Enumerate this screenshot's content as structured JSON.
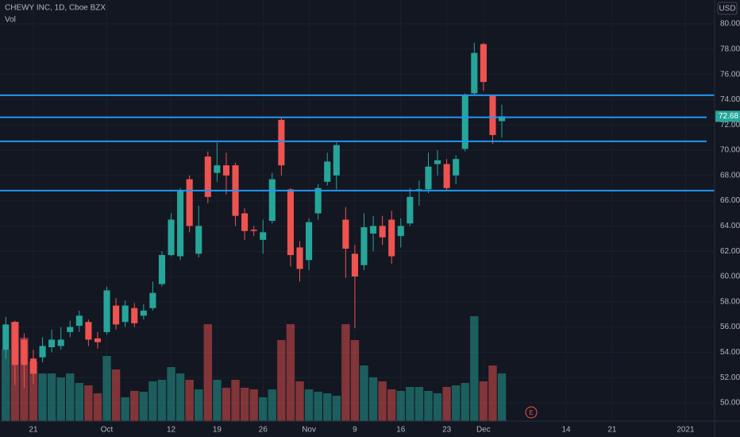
{
  "chart_data": {
    "type": "candlestick",
    "title": "CHEWY INC, 1D, Cboe BZX",
    "volume_label": "Vol",
    "currency": "USD",
    "earnings_marker": "E",
    "up_color": "#26a69a",
    "down_color": "#ef5350",
    "level_color": "#2196f3",
    "open": [
      54.2,
      56.4,
      55.0,
      53.5,
      53.6,
      54.4,
      54.5,
      55.6,
      56.1,
      56.4,
      55.1,
      55.6,
      57.7,
      56.4,
      57.5,
      56.9,
      57.5,
      59.4,
      61.7,
      61.6,
      67.7,
      61.8,
      69.5,
      68.2,
      68.8,
      68.8,
      65.0,
      63.7,
      62.9,
      64.4,
      72.4,
      66.9,
      62.3,
      61.3,
      65.0,
      67.5,
      68.0,
      64.5,
      61.8,
      60.9,
      63.4,
      64.0,
      64.5,
      63.2,
      64.2,
      66.8,
      66.9,
      68.9,
      68.9,
      68.0,
      70.1,
      74.5,
      78.4,
      74.3,
      72.3
    ],
    "high": [
      56.8,
      56.5,
      55.5,
      54.2,
      55.2,
      55.8,
      56.0,
      56.5,
      57.3,
      56.6,
      55.6,
      59.2,
      58.3,
      58.1,
      57.9,
      57.8,
      59.6,
      62.0,
      65.0,
      67.0,
      68.0,
      65.6,
      69.9,
      70.6,
      69.8,
      69.0,
      65.4,
      64.0,
      64.5,
      68.2,
      72.6,
      67.0,
      62.8,
      64.6,
      67.3,
      69.8,
      70.6,
      65.5,
      62.5,
      65.0,
      64.8,
      64.8,
      65.2,
      64.6,
      67.0,
      67.6,
      69.8,
      70.0,
      69.3,
      69.6,
      74.5,
      78.5,
      78.5,
      74.4,
      73.6
    ],
    "low": [
      53.5,
      51.4,
      51.2,
      51.5,
      53.2,
      54.0,
      54.2,
      55.2,
      55.6,
      54.5,
      54.3,
      55.4,
      55.8,
      56.0,
      56.0,
      56.6,
      57.3,
      59.2,
      61.6,
      61.3,
      63.5,
      61.5,
      65.8,
      67.5,
      66.5,
      64.0,
      62.9,
      63.2,
      61.8,
      64.2,
      68.0,
      60.8,
      59.6,
      60.5,
      64.5,
      67.2,
      66.9,
      59.9,
      55.9,
      60.5,
      62.0,
      62.5,
      61.0,
      62.3,
      64.0,
      65.6,
      66.6,
      68.0,
      66.8,
      67.3,
      69.9,
      74.4,
      74.7,
      70.5,
      71.0
    ],
    "close": [
      56.2,
      53.0,
      53.0,
      52.3,
      54.5,
      55.0,
      55.0,
      56.0,
      56.9,
      55.0,
      54.8,
      58.9,
      56.2,
      57.7,
      56.3,
      57.3,
      58.7,
      61.7,
      64.5,
      66.8,
      64.0,
      64.0,
      66.3,
      68.8,
      68.0,
      64.8,
      63.6,
      63.6,
      63.5,
      67.7,
      68.8,
      61.7,
      60.6,
      64.3,
      67.0,
      69.1,
      70.4,
      62.2,
      60.0,
      63.9,
      64.0,
      63.1,
      61.6,
      64.0,
      66.3,
      66.9,
      68.7,
      69.2,
      67.0,
      69.3,
      74.3,
      77.7,
      75.4,
      71.2,
      72.68
    ],
    "volume": [
      90,
      125,
      105,
      75,
      60,
      60,
      55,
      60,
      48,
      45,
      35,
      82,
      65,
      30,
      38,
      37,
      50,
      52,
      68,
      60,
      52,
      40,
      122,
      52,
      42,
      52,
      42,
      40,
      30,
      40,
      102,
      122,
      50,
      40,
      37,
      35,
      32,
      122,
      102,
      70,
      55,
      50,
      40,
      38,
      43,
      43,
      38,
      35,
      43,
      45,
      48,
      132,
      50,
      70,
      60
    ],
    "levels": [
      74.35,
      72.6,
      70.7,
      66.8
    ],
    "last_price": 72.68,
    "ylim": [
      48.55,
      81.89
    ],
    "yticks": [
      {
        "value": 50,
        "label": "50.00"
      },
      {
        "value": 52,
        "label": "52.00"
      },
      {
        "value": 54,
        "label": "54.00"
      },
      {
        "value": 56,
        "label": "56.00"
      },
      {
        "value": 58,
        "label": "58.00"
      },
      {
        "value": 60,
        "label": "60.00"
      },
      {
        "value": 62,
        "label": "62.00"
      },
      {
        "value": 64,
        "label": "64.00"
      },
      {
        "value": 66,
        "label": "66.00"
      },
      {
        "value": 68,
        "label": "68.00"
      },
      {
        "value": 70,
        "label": "70.00"
      },
      {
        "value": 72,
        "label": "72.00"
      },
      {
        "value": 74,
        "label": "74.00"
      },
      {
        "value": 76,
        "label": "76.00"
      },
      {
        "value": 78,
        "label": "78.00"
      },
      {
        "value": 80,
        "label": "80.00"
      }
    ],
    "xlim": [
      -0.63,
      77.16
    ],
    "xticks": [
      {
        "value": 3,
        "label": "21"
      },
      {
        "value": 11,
        "label": "Oct"
      },
      {
        "value": 18,
        "label": "12"
      },
      {
        "value": 23,
        "label": "19"
      },
      {
        "value": 28,
        "label": "26"
      },
      {
        "value": 33,
        "label": "Nov"
      },
      {
        "value": 38,
        "label": "9"
      },
      {
        "value": 43,
        "label": "16"
      },
      {
        "value": 48,
        "label": "23"
      },
      {
        "value": 52,
        "label": "Dec"
      },
      {
        "value": 61,
        "label": "14"
      },
      {
        "value": 66,
        "label": "21"
      },
      {
        "value": 74,
        "label": "2021"
      }
    ],
    "earnings_x": 57.2,
    "grid": true
  }
}
